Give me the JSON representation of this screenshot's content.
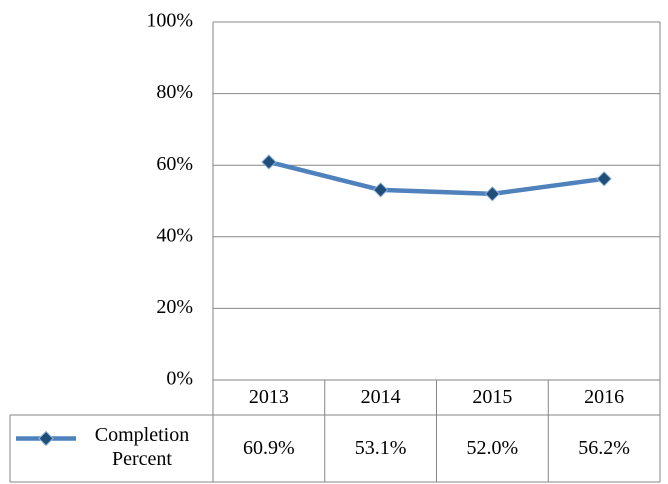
{
  "chart_data": {
    "type": "line",
    "categories": [
      "2013",
      "2014",
      "2015",
      "2016"
    ],
    "series": [
      {
        "name": "Completion Percent",
        "color": "#4f81bd",
        "marker_color": "#1f4e79",
        "values": [
          60.9,
          53.1,
          52.0,
          56.2
        ],
        "value_labels": [
          "60.9%",
          "53.1%",
          "52.0%",
          "56.2%"
        ]
      }
    ],
    "ylim": [
      0,
      100
    ],
    "yticks": [
      {
        "value": 0,
        "label": "0%"
      },
      {
        "value": 20,
        "label": "20%"
      },
      {
        "value": 40,
        "label": "40%"
      },
      {
        "value": 60,
        "label": "60%"
      },
      {
        "value": 80,
        "label": "80%"
      },
      {
        "value": 100,
        "label": "100%"
      }
    ],
    "grid": true,
    "data_table": true
  }
}
